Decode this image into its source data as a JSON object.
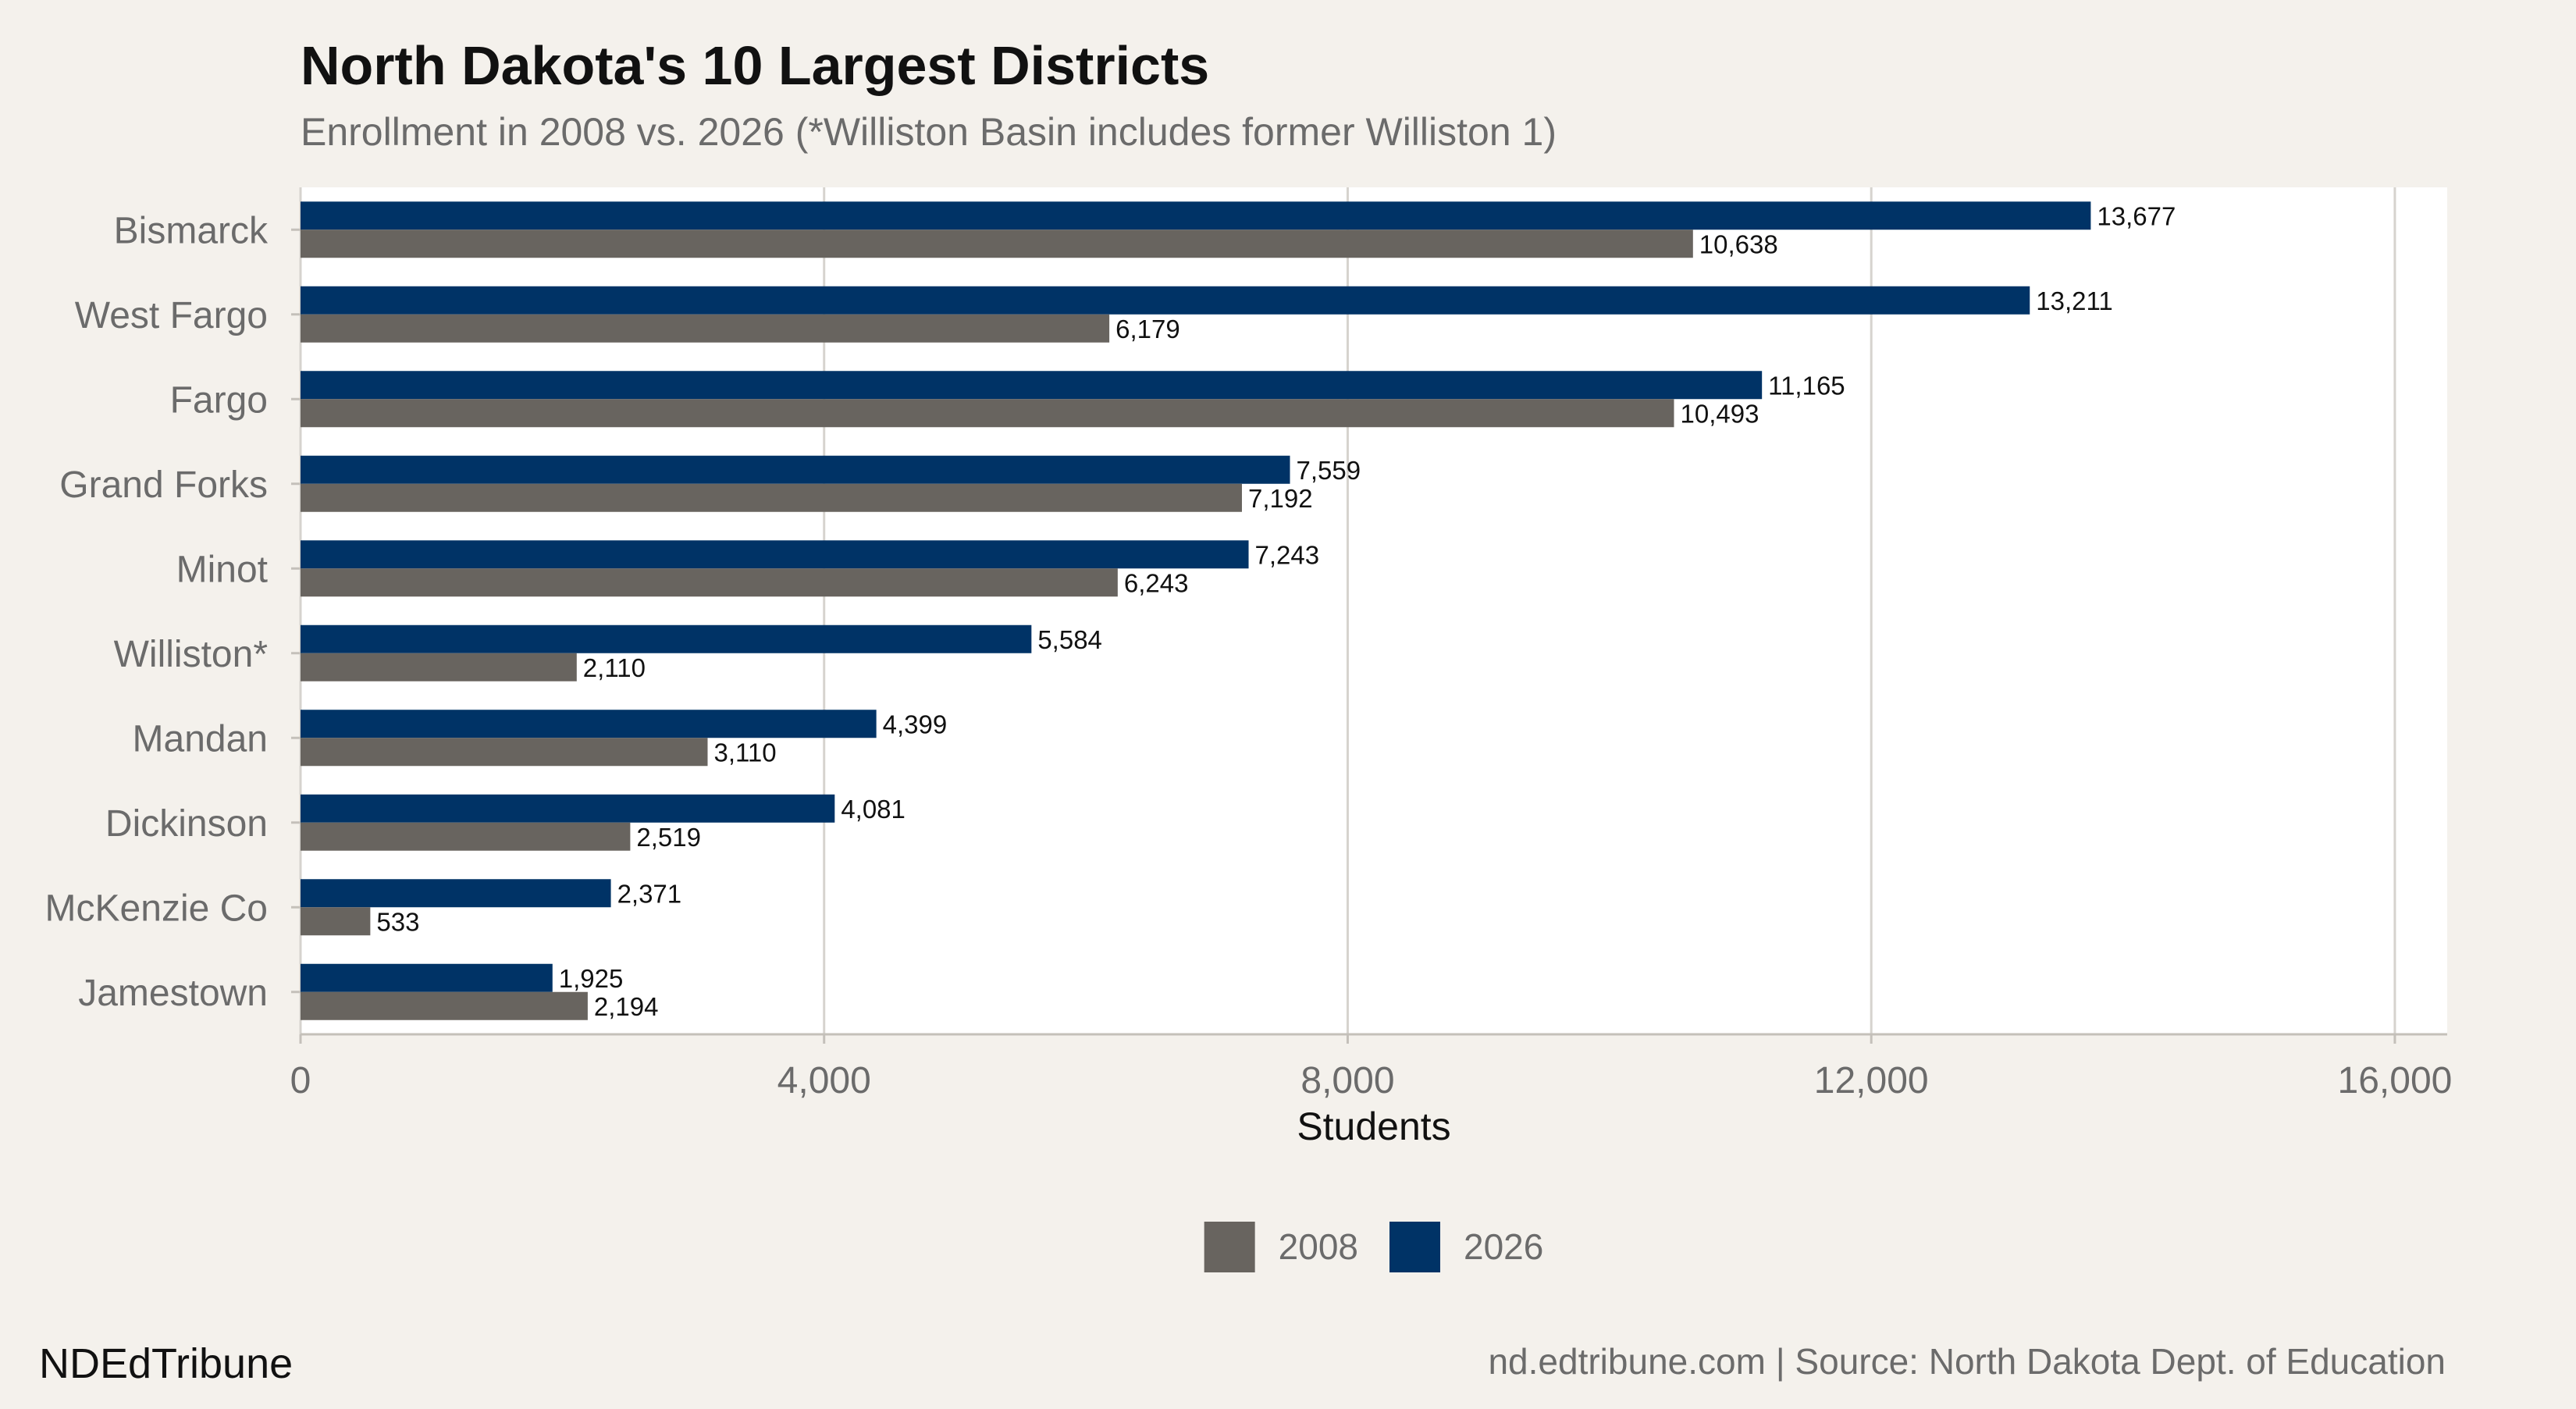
{
  "chart_data": {
    "type": "bar",
    "orientation": "horizontal",
    "title": "North Dakota's 10 Largest Districts",
    "subtitle": "Enrollment in 2008 vs. 2026 (*Williston Basin includes former Williston 1)",
    "xlabel": "Students",
    "ylabel": "",
    "xlim": [
      0,
      16400
    ],
    "x_ticks": [
      0,
      4000,
      8000,
      12000,
      16000
    ],
    "x_tick_labels": [
      "0",
      "4,000",
      "8,000",
      "12,000",
      "16,000"
    ],
    "grid": "vertical",
    "legend_position": "bottom",
    "categories": [
      "Bismarck",
      "West Fargo",
      "Fargo",
      "Grand Forks",
      "Minot",
      "Williston*",
      "Mandan",
      "Dickinson",
      "McKenzie Co",
      "Jamestown"
    ],
    "series": [
      {
        "name": "2026",
        "color": "#003366",
        "values": [
          13677,
          13211,
          11165,
          7559,
          7243,
          5584,
          4399,
          4081,
          2371,
          1925
        ],
        "labels": [
          "13,677",
          "13,211",
          "11,165",
          "7,559",
          "7,243",
          "5,584",
          "4,399",
          "4,081",
          "2,371",
          "1,925"
        ]
      },
      {
        "name": "2008",
        "color": "#68645f",
        "values": [
          10638,
          6179,
          10493,
          7192,
          6243,
          2110,
          3110,
          2519,
          533,
          2194
        ],
        "labels": [
          "10,638",
          "6,179",
          "10,493",
          "7,192",
          "6,243",
          "2,110",
          "3,110",
          "2,519",
          "533",
          "2,194"
        ]
      }
    ],
    "legend": [
      {
        "name": "2008",
        "color": "#68645f"
      },
      {
        "name": "2026",
        "color": "#003366"
      }
    ]
  },
  "footer": {
    "brand": "NDEdTribune",
    "source": "nd.edtribune.com | Source: North Dakota Dept. of Education"
  }
}
